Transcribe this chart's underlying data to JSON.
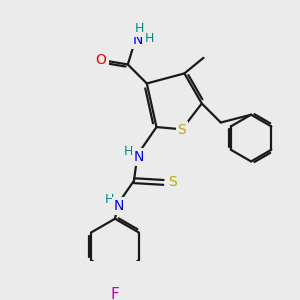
{
  "bg_color": "#ebebeb",
  "atom_colors": {
    "C": "#1a1a1a",
    "N": "#0000ee",
    "O": "#ee0000",
    "S": "#bbaa00",
    "F": "#cc00bb",
    "H": "#008888"
  },
  "bond_color": "#1a1a1a",
  "figsize": [
    3.0,
    3.0
  ],
  "dpi": 100
}
